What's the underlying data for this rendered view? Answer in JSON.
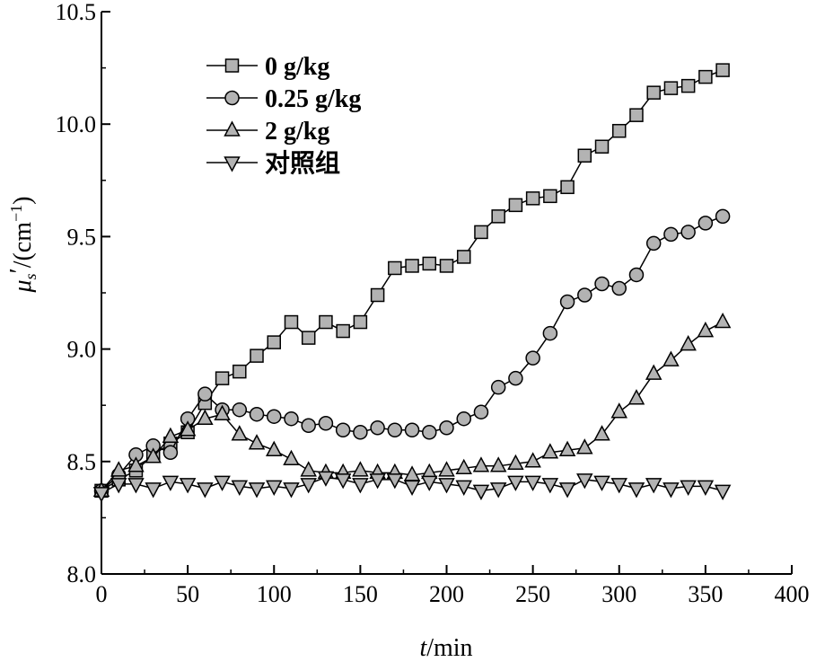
{
  "chart_data": {
    "type": "line",
    "xlabel": "t/min",
    "xlabel_italic": "t",
    "xlabel_rest": "/min",
    "ylabel": "μs′/(cm⁻¹)",
    "ylabel_sym": "μ",
    "ylabel_sub": "s",
    "ylabel_prime": "′",
    "ylabel_unit": "/(cm",
    "ylabel_sup": "−1",
    "ylabel_close": ")",
    "xlim": [
      0,
      400
    ],
    "ylim": [
      8.0,
      10.5
    ],
    "xticks": [
      "0",
      "50",
      "100",
      "150",
      "200",
      "250",
      "300",
      "350",
      "400"
    ],
    "yticks": [
      "8.0",
      "8.5",
      "9.0",
      "9.5",
      "10.0",
      "10.5"
    ],
    "grid": false,
    "legend_position": "top-left",
    "marker_color": "#b3b3b3",
    "line_color": "#000000",
    "x": [
      0,
      10,
      20,
      30,
      40,
      50,
      60,
      70,
      80,
      90,
      100,
      110,
      120,
      130,
      140,
      150,
      160,
      170,
      180,
      190,
      200,
      210,
      220,
      230,
      240,
      250,
      260,
      270,
      280,
      290,
      300,
      310,
      320,
      330,
      340,
      350,
      360
    ],
    "series": [
      {
        "name": "0 g/kg",
        "marker": "square",
        "values": [
          8.37,
          8.42,
          8.46,
          8.53,
          8.58,
          8.63,
          8.76,
          8.87,
          8.9,
          8.97,
          9.03,
          9.12,
          9.05,
          9.12,
          9.08,
          9.12,
          9.24,
          9.36,
          9.37,
          9.38,
          9.37,
          9.41,
          9.52,
          9.59,
          9.64,
          9.67,
          9.68,
          9.72,
          9.86,
          9.9,
          9.97,
          10.04,
          10.14,
          10.16,
          10.17,
          10.21,
          10.24
        ]
      },
      {
        "name": "0.25 g/kg",
        "marker": "circle",
        "values": [
          8.37,
          8.44,
          8.53,
          8.57,
          8.54,
          8.69,
          8.8,
          8.73,
          8.73,
          8.71,
          8.7,
          8.69,
          8.66,
          8.67,
          8.64,
          8.63,
          8.65,
          8.64,
          8.64,
          8.63,
          8.65,
          8.69,
          8.72,
          8.83,
          8.87,
          8.96,
          9.07,
          9.21,
          9.24,
          9.29,
          9.27,
          9.33,
          9.47,
          9.51,
          9.52,
          9.56,
          9.59
        ]
      },
      {
        "name": "2 g/kg",
        "marker": "triangle-up",
        "values": [
          8.37,
          8.46,
          8.48,
          8.52,
          8.61,
          8.64,
          8.69,
          8.71,
          8.62,
          8.58,
          8.55,
          8.51,
          8.46,
          8.45,
          8.45,
          8.46,
          8.45,
          8.45,
          8.44,
          8.45,
          8.46,
          8.47,
          8.48,
          8.48,
          8.49,
          8.5,
          8.54,
          8.55,
          8.56,
          8.62,
          8.72,
          8.78,
          8.89,
          8.95,
          9.02,
          9.08,
          9.12
        ]
      },
      {
        "name": "对照组",
        "marker": "triangle-down",
        "values": [
          8.36,
          8.4,
          8.4,
          8.38,
          8.41,
          8.4,
          8.38,
          8.41,
          8.39,
          8.38,
          8.39,
          8.38,
          8.4,
          8.43,
          8.42,
          8.4,
          8.42,
          8.42,
          8.39,
          8.41,
          8.4,
          8.39,
          8.37,
          8.38,
          8.41,
          8.41,
          8.4,
          8.38,
          8.42,
          8.41,
          8.4,
          8.38,
          8.4,
          8.38,
          8.39,
          8.39,
          8.37
        ]
      }
    ]
  }
}
